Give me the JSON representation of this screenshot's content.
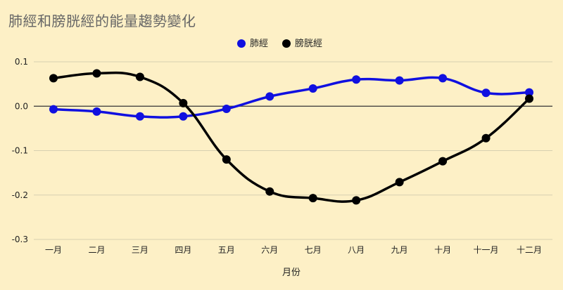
{
  "chart_data": {
    "type": "line",
    "title": "肺經和膀胱經的能量趨勢變化",
    "xlabel": "月份",
    "ylabel": "",
    "categories": [
      "一月",
      "二月",
      "三月",
      "四月",
      "五月",
      "六月",
      "七月",
      "八月",
      "九月",
      "十月",
      "十一月",
      "十二月"
    ],
    "ylim": [
      -0.3,
      0.1
    ],
    "yticks": [
      "0.1",
      "0.0",
      "-0.1",
      "-0.2",
      "-0.3"
    ],
    "ytick_values": [
      0.1,
      0.0,
      -0.1,
      -0.2,
      -0.3
    ],
    "grid": true,
    "legend_position": "top-center",
    "series": [
      {
        "name": "肺經",
        "color": "#1010e0",
        "values": [
          -0.007,
          -0.012,
          -0.023,
          -0.023,
          -0.006,
          0.022,
          0.04,
          0.06,
          0.058,
          0.063,
          0.03,
          0.031
        ]
      },
      {
        "name": "膀胱經",
        "color": "#000000",
        "values": [
          0.063,
          0.074,
          0.066,
          0.007,
          -0.12,
          -0.192,
          -0.207,
          -0.212,
          -0.171,
          -0.124,
          -0.072,
          0.017
        ]
      }
    ]
  }
}
